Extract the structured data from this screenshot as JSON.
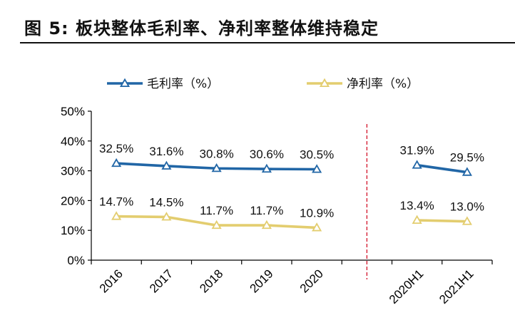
{
  "figure": {
    "title": "图 5: 板块整体毛利率、净利率整体维持稳定"
  },
  "chart_data": {
    "type": "line",
    "categories": [
      "2016",
      "2017",
      "2018",
      "2019",
      "2020",
      "2020H1",
      "2021H1"
    ],
    "series": [
      {
        "name": "毛利率（%）",
        "color": "#2166a6",
        "values": [
          32.5,
          31.6,
          30.8,
          30.6,
          30.5,
          31.9,
          29.5
        ],
        "labels": [
          "32.5%",
          "31.6%",
          "30.8%",
          "30.6%",
          "30.5%",
          "31.9%",
          "29.5%"
        ]
      },
      {
        "name": "净利率（%）",
        "color": "#e3cd6f",
        "values": [
          14.7,
          14.5,
          11.7,
          11.7,
          10.9,
          13.4,
          13.0
        ],
        "labels": [
          "14.7%",
          "14.5%",
          "11.7%",
          "11.7%",
          "10.9%",
          "13.4%",
          "13.0%"
        ]
      }
    ],
    "segments": [
      [
        0,
        4
      ],
      [
        5,
        6
      ]
    ],
    "ylim": [
      0,
      50
    ],
    "yticks": [
      "0%",
      "10%",
      "20%",
      "30%",
      "40%",
      "50%"
    ],
    "divider": {
      "style": "dashed",
      "color": "#d0021b",
      "between": [
        "2020",
        "2020H1"
      ]
    },
    "legend": "top",
    "grid": false,
    "marker": "triangle-open"
  }
}
